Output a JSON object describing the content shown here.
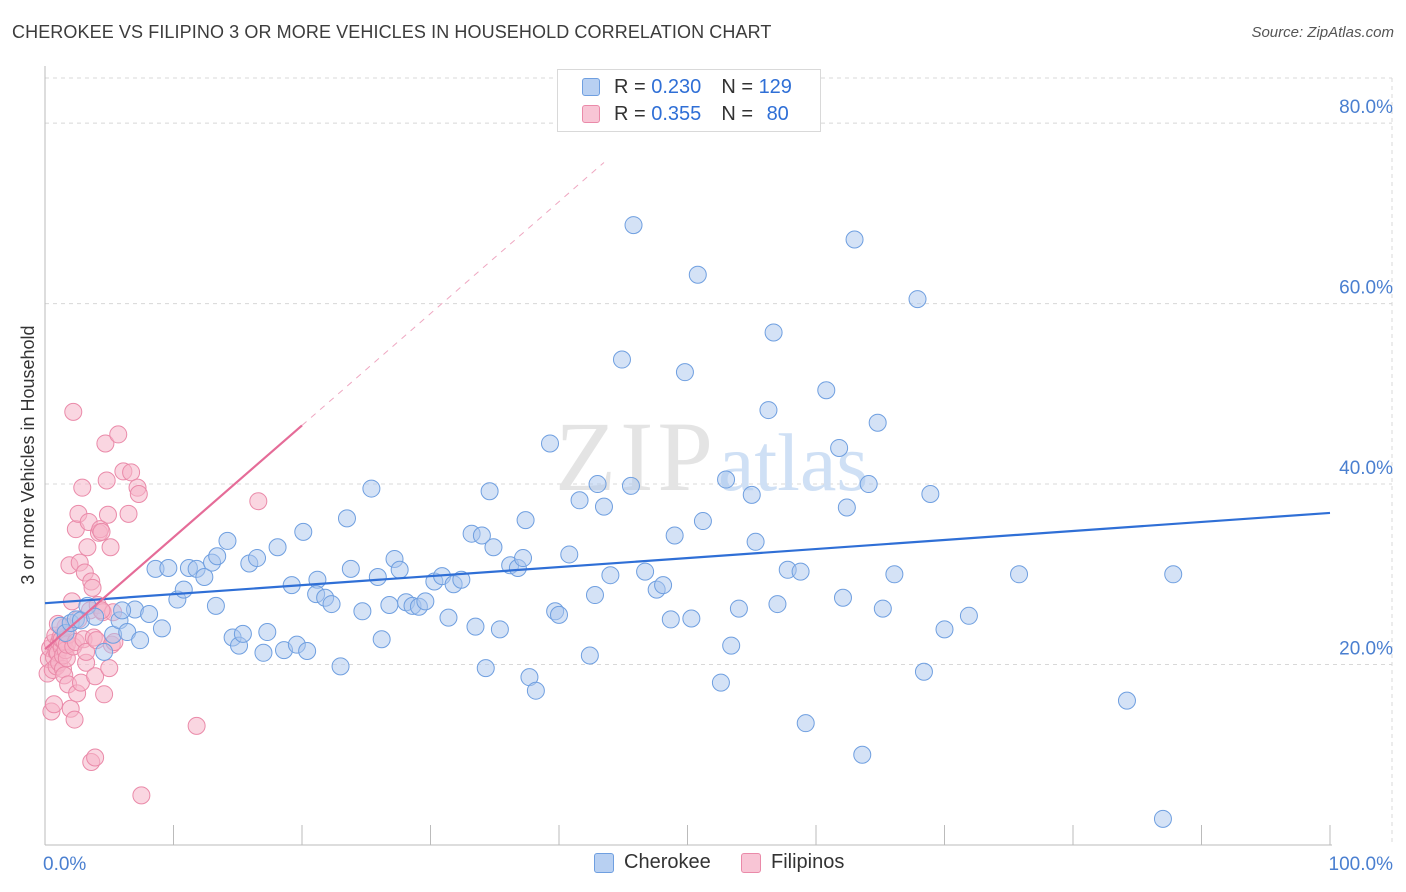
{
  "title": "CHEROKEE VS FILIPINO 3 OR MORE VEHICLES IN HOUSEHOLD CORRELATION CHART",
  "source": "Source: ZipAtlas.com",
  "watermark": {
    "part1": "ZIP",
    "part2": "atlas"
  },
  "legend": {
    "rows": [
      {
        "r_label": "R =",
        "r_value": "0.230",
        "n_label": "N =",
        "n_value": "129"
      },
      {
        "r_label": "R =",
        "r_value": "0.355",
        "n_label": "N =",
        "n_value": "80"
      }
    ],
    "bottom": [
      "Cherokee",
      "Filipinos"
    ]
  },
  "colors": {
    "cherokee_fill": "#a9c6ee",
    "cherokee_stroke": "#6f9fe0",
    "cherokee_line": "#2f6fd6",
    "filipinos_fill": "#f5b4c9",
    "filipinos_stroke": "#ea8aa9",
    "filipinos_line": "#e56c98",
    "tick_text": "#4a7fd0",
    "grid": "#d8d8d8"
  },
  "chart_data": {
    "type": "scatter",
    "title": "CHEROKEE VS FILIPINO 3 OR MORE VEHICLES IN HOUSEHOLD CORRELATION CHART",
    "xlabel": "",
    "ylabel": "3 or more Vehicles in Household",
    "xlim": [
      0,
      100
    ],
    "ylim": [
      0,
      85
    ],
    "x_tick_labels": [
      {
        "value": 0,
        "label": "0.0%"
      },
      {
        "value": 100,
        "label": "100.0%"
      }
    ],
    "x_tick_marks": [
      0,
      10,
      20,
      30,
      40,
      50,
      60,
      70,
      80,
      90,
      100
    ],
    "y_ticks": [
      {
        "value": 20,
        "label": "20.0%"
      },
      {
        "value": 40,
        "label": "40.0%"
      },
      {
        "value": 60,
        "label": "60.0%"
      },
      {
        "value": 80,
        "label": "80.0%"
      }
    ],
    "series": [
      {
        "name": "Cherokee",
        "r": 0.23,
        "n": 129,
        "trend": {
          "x0": 0,
          "y0": 26.8,
          "x1": 100,
          "y1": 36.8
        },
        "points": [
          [
            1.2,
            24.3
          ],
          [
            1.6,
            23.5
          ],
          [
            2.0,
            24.6
          ],
          [
            2.4,
            25.0
          ],
          [
            2.8,
            24.9
          ],
          [
            3.3,
            26.5
          ],
          [
            3.9,
            25.3
          ],
          [
            4.6,
            21.4
          ],
          [
            5.3,
            23.3
          ],
          [
            5.8,
            24.9
          ],
          [
            6.4,
            23.6
          ],
          [
            7.0,
            26.1
          ],
          [
            7.4,
            22.7
          ],
          [
            8.1,
            25.6
          ],
          [
            8.6,
            30.6
          ],
          [
            9.1,
            24.0
          ],
          [
            9.6,
            30.7
          ],
          [
            10.3,
            27.2
          ],
          [
            10.8,
            28.3
          ],
          [
            11.2,
            30.7
          ],
          [
            11.8,
            30.6
          ],
          [
            12.4,
            29.7
          ],
          [
            13.0,
            31.3
          ],
          [
            13.4,
            32.0
          ],
          [
            13.3,
            26.5
          ],
          [
            14.2,
            33.7
          ],
          [
            14.6,
            23.0
          ],
          [
            15.1,
            22.1
          ],
          [
            15.4,
            23.4
          ],
          [
            15.9,
            31.2
          ],
          [
            16.5,
            31.8
          ],
          [
            17.0,
            21.3
          ],
          [
            17.3,
            23.6
          ],
          [
            18.1,
            33.0
          ],
          [
            18.6,
            21.6
          ],
          [
            19.2,
            28.8
          ],
          [
            19.6,
            22.2
          ],
          [
            20.1,
            34.7
          ],
          [
            20.4,
            21.5
          ],
          [
            21.2,
            29.4
          ],
          [
            21.1,
            27.8
          ],
          [
            21.8,
            27.4
          ],
          [
            22.3,
            26.7
          ],
          [
            23.0,
            19.8
          ],
          [
            23.5,
            36.2
          ],
          [
            23.8,
            30.6
          ],
          [
            24.7,
            25.9
          ],
          [
            25.4,
            39.5
          ],
          [
            25.9,
            29.7
          ],
          [
            26.2,
            22.8
          ],
          [
            26.8,
            26.6
          ],
          [
            27.2,
            31.7
          ],
          [
            27.6,
            30.5
          ],
          [
            28.1,
            26.9
          ],
          [
            28.6,
            26.5
          ],
          [
            29.1,
            26.4
          ],
          [
            29.6,
            27.0
          ],
          [
            30.3,
            29.2
          ],
          [
            30.9,
            29.8
          ],
          [
            31.4,
            25.2
          ],
          [
            31.8,
            28.9
          ],
          [
            32.4,
            29.4
          ],
          [
            33.2,
            34.5
          ],
          [
            33.5,
            24.2
          ],
          [
            34.0,
            34.3
          ],
          [
            34.3,
            19.6
          ],
          [
            34.6,
            39.2
          ],
          [
            34.9,
            33.0
          ],
          [
            35.4,
            23.9
          ],
          [
            36.2,
            31.0
          ],
          [
            36.8,
            30.7
          ],
          [
            37.2,
            31.8
          ],
          [
            37.4,
            36.0
          ],
          [
            37.7,
            18.6
          ],
          [
            38.2,
            17.1
          ],
          [
            39.3,
            44.5
          ],
          [
            39.7,
            25.9
          ],
          [
            40.0,
            25.5
          ],
          [
            40.8,
            32.2
          ],
          [
            41.6,
            38.2
          ],
          [
            42.4,
            21.0
          ],
          [
            42.8,
            27.7
          ],
          [
            43.0,
            40.0
          ],
          [
            43.5,
            37.5
          ],
          [
            44.0,
            29.9
          ],
          [
            44.9,
            53.8
          ],
          [
            45.6,
            39.8
          ],
          [
            45.8,
            68.7
          ],
          [
            46.7,
            30.3
          ],
          [
            47.6,
            28.3
          ],
          [
            48.1,
            28.8
          ],
          [
            48.7,
            25.0
          ],
          [
            49.0,
            34.3
          ],
          [
            49.8,
            52.4
          ],
          [
            50.3,
            25.1
          ],
          [
            50.8,
            63.2
          ],
          [
            51.2,
            35.9
          ],
          [
            52.6,
            18.0
          ],
          [
            53.0,
            40.5
          ],
          [
            53.4,
            22.1
          ],
          [
            54.0,
            26.2
          ],
          [
            55.0,
            38.8
          ],
          [
            55.3,
            33.6
          ],
          [
            56.3,
            48.2
          ],
          [
            56.7,
            56.8
          ],
          [
            57.0,
            26.7
          ],
          [
            57.8,
            30.5
          ],
          [
            58.8,
            30.3
          ],
          [
            59.2,
            13.5
          ],
          [
            60.8,
            50.4
          ],
          [
            61.8,
            44.0
          ],
          [
            62.1,
            27.4
          ],
          [
            62.4,
            37.4
          ],
          [
            63.0,
            67.1
          ],
          [
            63.6,
            10.0
          ],
          [
            64.1,
            40.0
          ],
          [
            64.8,
            46.8
          ],
          [
            65.2,
            26.2
          ],
          [
            66.1,
            30.0
          ],
          [
            67.9,
            60.5
          ],
          [
            68.4,
            19.2
          ],
          [
            68.9,
            38.9
          ],
          [
            70.0,
            23.9
          ],
          [
            71.9,
            25.4
          ],
          [
            75.8,
            30.0
          ],
          [
            84.2,
            16.0
          ],
          [
            87.0,
            2.9
          ],
          [
            87.8,
            30.0
          ],
          [
            6.0,
            26.0
          ]
        ]
      },
      {
        "name": "Filipinos",
        "r": 0.355,
        "n": 80,
        "trend": {
          "x0": 0,
          "y0": 21.7,
          "x1": 20,
          "y1": 46.5
        },
        "points": [
          [
            0.2,
            19.0
          ],
          [
            0.3,
            20.6
          ],
          [
            0.4,
            21.8
          ],
          [
            0.5,
            14.8
          ],
          [
            0.6,
            22.4
          ],
          [
            0.6,
            19.4
          ],
          [
            0.7,
            15.6
          ],
          [
            0.7,
            20.8
          ],
          [
            0.8,
            23.2
          ],
          [
            0.9,
            21.4
          ],
          [
            0.9,
            19.8
          ],
          [
            1.0,
            21.3
          ],
          [
            1.1,
            22.5
          ],
          [
            1.1,
            20.2
          ],
          [
            1.2,
            23.0
          ],
          [
            1.3,
            21.9
          ],
          [
            1.3,
            22.8
          ],
          [
            1.4,
            19.5
          ],
          [
            1.4,
            21.0
          ],
          [
            1.5,
            22.6
          ],
          [
            1.5,
            18.8
          ],
          [
            1.6,
            21.6
          ],
          [
            1.6,
            24.2
          ],
          [
            1.7,
            20.7
          ],
          [
            1.7,
            22.2
          ],
          [
            1.8,
            17.8
          ],
          [
            1.8,
            23.3
          ],
          [
            1.9,
            31.0
          ],
          [
            2.0,
            15.1
          ],
          [
            2.1,
            27.0
          ],
          [
            2.2,
            48.0
          ],
          [
            2.2,
            22.0
          ],
          [
            2.3,
            13.9
          ],
          [
            2.4,
            35.0
          ],
          [
            2.4,
            22.5
          ],
          [
            2.5,
            16.8
          ],
          [
            2.6,
            36.7
          ],
          [
            2.7,
            31.3
          ],
          [
            2.8,
            18.0
          ],
          [
            2.9,
            39.6
          ],
          [
            3.0,
            22.8
          ],
          [
            3.1,
            30.2
          ],
          [
            3.2,
            20.2
          ],
          [
            3.2,
            21.4
          ],
          [
            3.3,
            33.0
          ],
          [
            3.4,
            35.8
          ],
          [
            3.5,
            26.0
          ],
          [
            3.6,
            9.2
          ],
          [
            3.6,
            29.2
          ],
          [
            3.7,
            28.5
          ],
          [
            3.8,
            23.0
          ],
          [
            3.9,
            18.7
          ],
          [
            3.9,
            9.7
          ],
          [
            4.0,
            22.7
          ],
          [
            4.1,
            26.6
          ],
          [
            4.2,
            34.6
          ],
          [
            4.3,
            35.0
          ],
          [
            4.4,
            34.7
          ],
          [
            4.5,
            25.8
          ],
          [
            4.6,
            16.7
          ],
          [
            4.7,
            44.5
          ],
          [
            4.8,
            40.4
          ],
          [
            4.9,
            36.6
          ],
          [
            5.0,
            19.6
          ],
          [
            5.1,
            33.0
          ],
          [
            5.2,
            22.2
          ],
          [
            5.3,
            25.8
          ],
          [
            5.4,
            22.5
          ],
          [
            5.7,
            45.5
          ],
          [
            6.1,
            41.4
          ],
          [
            6.5,
            36.7
          ],
          [
            6.7,
            41.3
          ],
          [
            7.2,
            39.6
          ],
          [
            7.3,
            38.9
          ],
          [
            7.5,
            5.5
          ],
          [
            11.8,
            13.2
          ],
          [
            16.6,
            38.1
          ],
          [
            4.4,
            26.0
          ],
          [
            2.6,
            25.0
          ],
          [
            1.0,
            24.5
          ]
        ]
      }
    ]
  }
}
